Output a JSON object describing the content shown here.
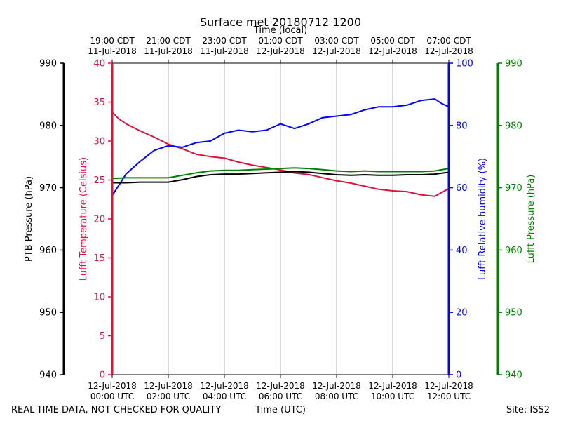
{
  "chart_data": {
    "type": "line",
    "title": "Surface met 20180712 1200",
    "top_axis_title": "Time (local)",
    "bottom_axis_title": "Time (UTC)",
    "footer_left": "REAL-TIME DATA, NOT CHECKED FOR QUALITY",
    "footer_right": "Site: ISS2",
    "x_range_hours": [
      0,
      12
    ],
    "x_grid": true,
    "bottom_ticks": [
      {
        "hour": 0,
        "l1": "12-Jul-2018",
        "l2": "00:00 UTC"
      },
      {
        "hour": 2,
        "l1": "12-Jul-2018",
        "l2": "02:00 UTC"
      },
      {
        "hour": 4,
        "l1": "12-Jul-2018",
        "l2": "04:00 UTC"
      },
      {
        "hour": 6,
        "l1": "12-Jul-2018",
        "l2": "06:00 UTC"
      },
      {
        "hour": 8,
        "l1": "12-Jul-2018",
        "l2": "08:00 UTC"
      },
      {
        "hour": 10,
        "l1": "12-Jul-2018",
        "l2": "10:00 UTC"
      },
      {
        "hour": 12,
        "l1": "12-Jul-2018",
        "l2": "12:00 UTC"
      }
    ],
    "top_ticks": [
      {
        "hour": 0,
        "l1": "19:00 CDT",
        "l2": "11-Jul-2018"
      },
      {
        "hour": 2,
        "l1": "21:00 CDT",
        "l2": "11-Jul-2018"
      },
      {
        "hour": 4,
        "l1": "23:00 CDT",
        "l2": "11-Jul-2018"
      },
      {
        "hour": 6,
        "l1": "01:00 CDT",
        "l2": "12-Jul-2018"
      },
      {
        "hour": 8,
        "l1": "03:00 CDT",
        "l2": "12-Jul-2018"
      },
      {
        "hour": 10,
        "l1": "05:00 CDT",
        "l2": "12-Jul-2018"
      },
      {
        "hour": 12,
        "l1": "07:00 CDT",
        "l2": "12-Jul-2018"
      }
    ],
    "axes": [
      {
        "id": "ptb",
        "label": "PTB Pressure (hPa)",
        "color": "#000000",
        "range": [
          940,
          990
        ],
        "ticks": [
          940,
          950,
          960,
          970,
          980,
          990
        ]
      },
      {
        "id": "temp",
        "label": "Lufft Temperature (Celsius)",
        "color": "#dc143c",
        "range": [
          0,
          40
        ],
        "ticks": [
          0,
          5,
          10,
          15,
          20,
          25,
          30,
          35,
          40
        ]
      },
      {
        "id": "rh",
        "label": "Lufft Relative humidity (%)",
        "color": "#0000ff",
        "range": [
          0,
          100
        ],
        "ticks": [
          0,
          20,
          40,
          60,
          80,
          100
        ]
      },
      {
        "id": "lp",
        "label": "Lufft Pressure (hPa)",
        "color": "#008000",
        "range": [
          940,
          990
        ],
        "ticks": [
          940,
          950,
          960,
          970,
          980,
          990
        ]
      }
    ],
    "series": [
      {
        "name": "Lufft Temperature",
        "axis": "temp",
        "color": "#dc143c",
        "x": [
          0,
          0.25,
          0.5,
          1,
          1.5,
          2,
          2.5,
          3,
          3.5,
          4,
          4.5,
          5,
          5.5,
          6,
          6.5,
          7,
          7.5,
          8,
          8.5,
          9,
          9.5,
          10,
          10.5,
          11,
          11.5,
          12
        ],
        "values": [
          33.7,
          32.8,
          32.2,
          31.3,
          30.5,
          29.6,
          29.0,
          28.3,
          28.0,
          27.8,
          27.3,
          26.9,
          26.6,
          26.3,
          25.9,
          25.7,
          25.3,
          24.9,
          24.6,
          24.2,
          23.8,
          23.6,
          23.5,
          23.1,
          22.9,
          23.9
        ]
      },
      {
        "name": "Lufft Relative humidity",
        "axis": "rh",
        "color": "#0000ff",
        "x": [
          0,
          0.25,
          0.5,
          0.75,
          1,
          1.5,
          2,
          2.5,
          3,
          3.5,
          4,
          4.5,
          5,
          5.5,
          6,
          6.5,
          7,
          7.5,
          8,
          8.5,
          9,
          9.5,
          10,
          10.5,
          11,
          11.5,
          11.75,
          12
        ],
        "values": [
          57.5,
          61,
          64.5,
          66.5,
          68.5,
          72,
          73.5,
          73,
          74.5,
          75,
          77.5,
          78.5,
          78,
          78.5,
          80.5,
          79,
          80.5,
          82.5,
          83,
          83.5,
          85,
          86,
          86,
          86.5,
          88,
          88.5,
          87,
          86
        ]
      },
      {
        "name": "PTB Pressure",
        "axis": "ptb",
        "color": "#000000",
        "x": [
          0,
          0.5,
          1,
          1.5,
          2,
          2.5,
          3,
          3.5,
          4,
          4.5,
          5,
          5.5,
          6,
          6.5,
          7,
          7.5,
          8,
          8.5,
          9,
          9.5,
          10,
          10.5,
          11,
          11.5,
          12
        ],
        "values": [
          970.8,
          970.8,
          970.9,
          970.9,
          970.9,
          971.3,
          971.8,
          972.1,
          972.2,
          972.2,
          972.3,
          972.4,
          972.5,
          972.6,
          972.5,
          972.3,
          972.1,
          972.0,
          972.1,
          972.0,
          972.0,
          972.1,
          972.1,
          972.2,
          972.5
        ]
      },
      {
        "name": "Lufft Pressure",
        "axis": "lp",
        "color": "#008000",
        "x": [
          0,
          0.5,
          1,
          1.5,
          2,
          2.5,
          3,
          3.5,
          4,
          4.5,
          5,
          5.5,
          6,
          6.5,
          7,
          7.5,
          8,
          8.5,
          9,
          9.5,
          10,
          10.5,
          11,
          11.5,
          12
        ],
        "values": [
          971.5,
          971.6,
          971.6,
          971.6,
          971.6,
          972.0,
          972.4,
          972.7,
          972.8,
          972.8,
          972.9,
          973.0,
          973.1,
          973.2,
          973.1,
          972.9,
          972.7,
          972.6,
          972.7,
          972.6,
          972.6,
          972.6,
          972.6,
          972.7,
          973.1
        ]
      }
    ]
  }
}
